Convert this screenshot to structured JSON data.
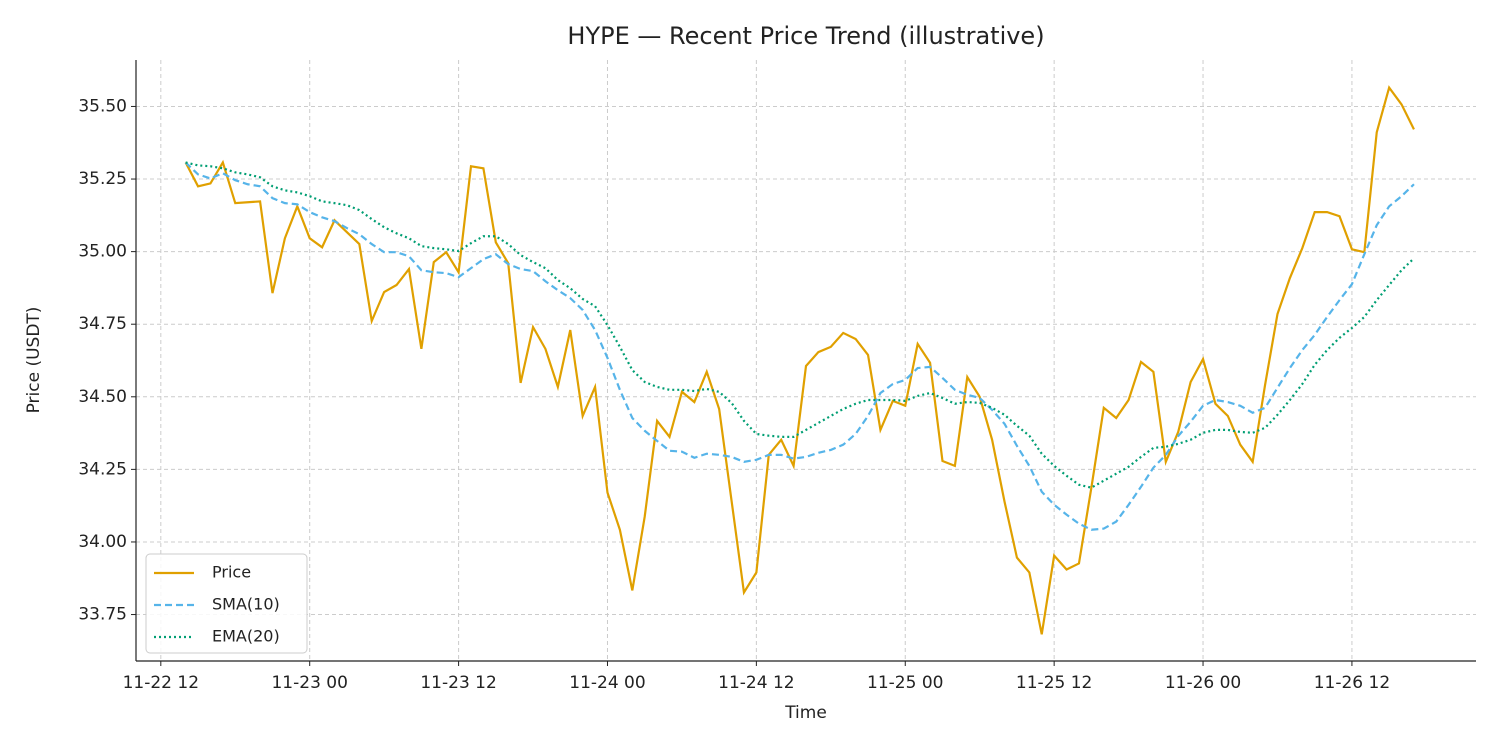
{
  "chart_data": {
    "type": "line",
    "title": "HYPE — Recent Price Trend (illustrative)",
    "x_label": "Time",
    "y_label": "Price (USDT)",
    "x": [
      "11-22 14",
      "11-22 15",
      "11-22 16",
      "11-22 17",
      "11-22 18",
      "11-22 19",
      "11-22 20",
      "11-22 21",
      "11-22 22",
      "11-22 23",
      "11-23 00",
      "11-23 01",
      "11-23 02",
      "11-23 03",
      "11-23 04",
      "11-23 05",
      "11-23 06",
      "11-23 07",
      "11-23 08",
      "11-23 09",
      "11-23 10",
      "11-23 11",
      "11-23 12",
      "11-23 13",
      "11-23 14",
      "11-23 15",
      "11-23 16",
      "11-23 17",
      "11-23 18",
      "11-23 19",
      "11-23 20",
      "11-23 21",
      "11-23 22",
      "11-23 23",
      "11-24 00",
      "11-24 01",
      "11-24 02",
      "11-24 03",
      "11-24 04",
      "11-24 05",
      "11-24 06",
      "11-24 07",
      "11-24 08",
      "11-24 09",
      "11-24 10",
      "11-24 11",
      "11-24 12",
      "11-24 13",
      "11-24 14",
      "11-24 15",
      "11-24 16",
      "11-24 17",
      "11-24 18",
      "11-24 19",
      "11-24 20",
      "11-24 21",
      "11-24 22",
      "11-24 23",
      "11-25 00",
      "11-25 01",
      "11-25 02",
      "11-25 03",
      "11-25 04",
      "11-25 05",
      "11-25 06",
      "11-25 07",
      "11-25 08",
      "11-25 09",
      "11-25 10",
      "11-25 11",
      "11-25 12",
      "11-25 13",
      "11-25 14",
      "11-25 15",
      "11-25 16",
      "11-25 17",
      "11-25 18",
      "11-25 19",
      "11-25 20",
      "11-25 21",
      "11-25 22",
      "11-25 23",
      "11-26 00",
      "11-26 01",
      "11-26 02",
      "11-26 03",
      "11-26 04",
      "11-26 05",
      "11-26 06",
      "11-26 07",
      "11-26 08",
      "11-26 09",
      "11-26 10",
      "11-26 11",
      "11-26 12",
      "11-26 13",
      "11-26 14",
      "11-26 15",
      "11-26 16",
      "11-26 17"
    ],
    "series": [
      {
        "name": "Price",
        "color": "#e0a000",
        "style": "solid",
        "values": [
          35.307,
          35.225,
          35.235,
          35.307,
          35.167,
          35.17,
          35.173,
          34.857,
          35.046,
          35.156,
          35.046,
          35.015,
          35.108,
          35.067,
          35.026,
          34.761,
          34.861,
          34.885,
          34.94,
          34.665,
          34.964,
          34.998,
          34.929,
          35.294,
          35.287,
          35.032,
          34.96,
          34.548,
          34.74,
          34.665,
          34.534,
          34.73,
          34.434,
          34.534,
          34.17,
          34.042,
          33.833,
          34.087,
          34.417,
          34.362,
          34.517,
          34.482,
          34.586,
          34.458,
          34.142,
          33.826,
          33.895,
          34.3,
          34.352,
          34.262,
          34.606,
          34.654,
          34.672,
          34.72,
          34.699,
          34.644,
          34.386,
          34.486,
          34.469,
          34.682,
          34.617,
          34.279,
          34.262,
          34.568,
          34.5,
          34.352,
          34.139,
          33.946,
          33.895,
          33.682,
          33.953,
          33.905,
          33.926,
          34.187,
          34.462,
          34.427,
          34.489,
          34.62,
          34.586,
          34.276,
          34.379,
          34.551,
          34.63,
          34.476,
          34.434,
          34.335,
          34.276,
          34.541,
          34.785,
          34.909,
          35.012,
          35.136,
          35.136,
          35.122,
          35.008,
          34.998,
          35.411,
          35.565,
          35.507,
          35.421
        ]
      },
      {
        "name": "SMA(10)",
        "color": "#56b4e9",
        "style": "dashed",
        "values": [
          35.307,
          35.266,
          35.252,
          35.27,
          35.246,
          35.232,
          35.225,
          35.184,
          35.167,
          35.163,
          35.136,
          35.118,
          35.105,
          35.081,
          35.06,
          35.026,
          34.998,
          34.998,
          34.984,
          34.936,
          34.929,
          34.926,
          34.912,
          34.943,
          34.974,
          34.991,
          34.957,
          34.94,
          34.933,
          34.898,
          34.867,
          34.84,
          34.799,
          34.73,
          34.634,
          34.524,
          34.427,
          34.383,
          34.348,
          34.314,
          34.311,
          34.29,
          34.304,
          34.3,
          34.293,
          34.276,
          34.283,
          34.3,
          34.3,
          34.287,
          34.293,
          34.307,
          34.317,
          34.335,
          34.372,
          34.434,
          34.513,
          34.544,
          34.558,
          34.599,
          34.603,
          34.565,
          34.524,
          34.507,
          34.496,
          34.455,
          34.407,
          34.331,
          34.262,
          34.173,
          34.128,
          34.094,
          34.063,
          34.042,
          34.046,
          34.07,
          34.128,
          34.19,
          34.256,
          34.3,
          34.365,
          34.414,
          34.469,
          34.489,
          34.482,
          34.469,
          34.445,
          34.462,
          34.531,
          34.599,
          34.661,
          34.713,
          34.775,
          34.833,
          34.888,
          34.991,
          35.091,
          35.156,
          35.191,
          35.232
        ]
      },
      {
        "name": "EMA(20)",
        "color": "#009e73",
        "style": "dotted",
        "values": [
          35.307,
          35.297,
          35.294,
          35.287,
          35.273,
          35.266,
          35.256,
          35.225,
          35.211,
          35.204,
          35.191,
          35.173,
          35.167,
          35.16,
          35.143,
          35.112,
          35.084,
          35.063,
          35.046,
          35.019,
          35.012,
          35.008,
          35.002,
          35.029,
          35.053,
          35.053,
          35.026,
          34.988,
          34.964,
          34.943,
          34.902,
          34.874,
          34.837,
          34.812,
          34.747,
          34.672,
          34.592,
          34.551,
          34.534,
          34.524,
          34.524,
          34.52,
          34.527,
          34.517,
          34.479,
          34.417,
          34.372,
          34.366,
          34.362,
          34.362,
          34.386,
          34.41,
          34.434,
          34.458,
          34.476,
          34.489,
          34.489,
          34.489,
          34.486,
          34.503,
          34.513,
          34.496,
          34.476,
          34.482,
          34.479,
          34.462,
          34.438,
          34.4,
          34.366,
          34.304,
          34.262,
          34.228,
          34.197,
          34.187,
          34.211,
          34.235,
          34.259,
          34.293,
          34.324,
          34.328,
          34.338,
          34.352,
          34.376,
          34.386,
          34.386,
          34.379,
          34.376,
          34.393,
          34.438,
          34.489,
          34.544,
          34.61,
          34.661,
          34.703,
          34.737,
          34.775,
          34.833,
          34.885,
          34.936,
          34.977
        ]
      }
    ],
    "xlim": [
      "11-22 10",
      "11-26 22"
    ],
    "xticks": [
      "11-22 12",
      "11-23 00",
      "11-23 12",
      "11-24 00",
      "11-24 12",
      "11-25 00",
      "11-25 12",
      "11-26 00",
      "11-26 12"
    ],
    "ylim": [
      33.59,
      35.66
    ],
    "yticks": [
      33.75,
      {
        "value": 34,
        "label": "34.00"
      },
      34.25,
      {
        "value": 34.5,
        "label": "34.50"
      },
      34.75,
      {
        "value": 35,
        "label": "35.00"
      },
      35.25,
      {
        "value": 35.5,
        "label": "35.50"
      }
    ],
    "grid": true,
    "legend": "lower left"
  }
}
